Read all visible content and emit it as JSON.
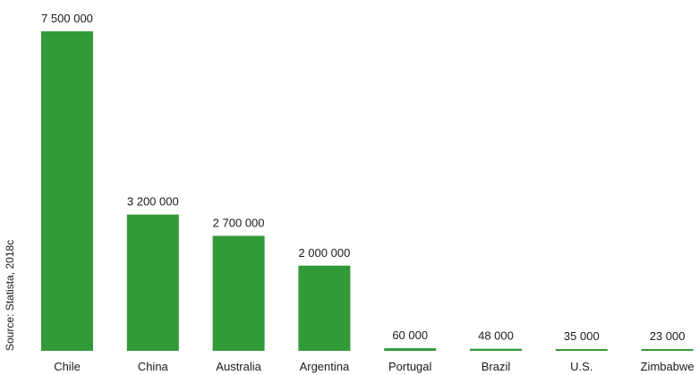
{
  "chart_data": {
    "type": "bar",
    "categories": [
      "Chile",
      "China",
      "Australia",
      "Argentina",
      "Portugal",
      "Brazil",
      "U.S.",
      "Zimbabwe"
    ],
    "values": [
      7500000,
      3200000,
      2700000,
      2000000,
      60000,
      48000,
      35000,
      23000
    ],
    "value_labels": [
      "7 500 000",
      "3 200 000",
      "2 700 000",
      "2 000 000",
      "60 000",
      "48 000",
      "35 000",
      "23 000"
    ],
    "title": "",
    "xlabel": "",
    "ylabel": "",
    "ylim": [
      0,
      7500000
    ],
    "grid": false,
    "legend": "none",
    "source": "Source: Statista, 2018c",
    "bar_color": "#339a3a"
  }
}
